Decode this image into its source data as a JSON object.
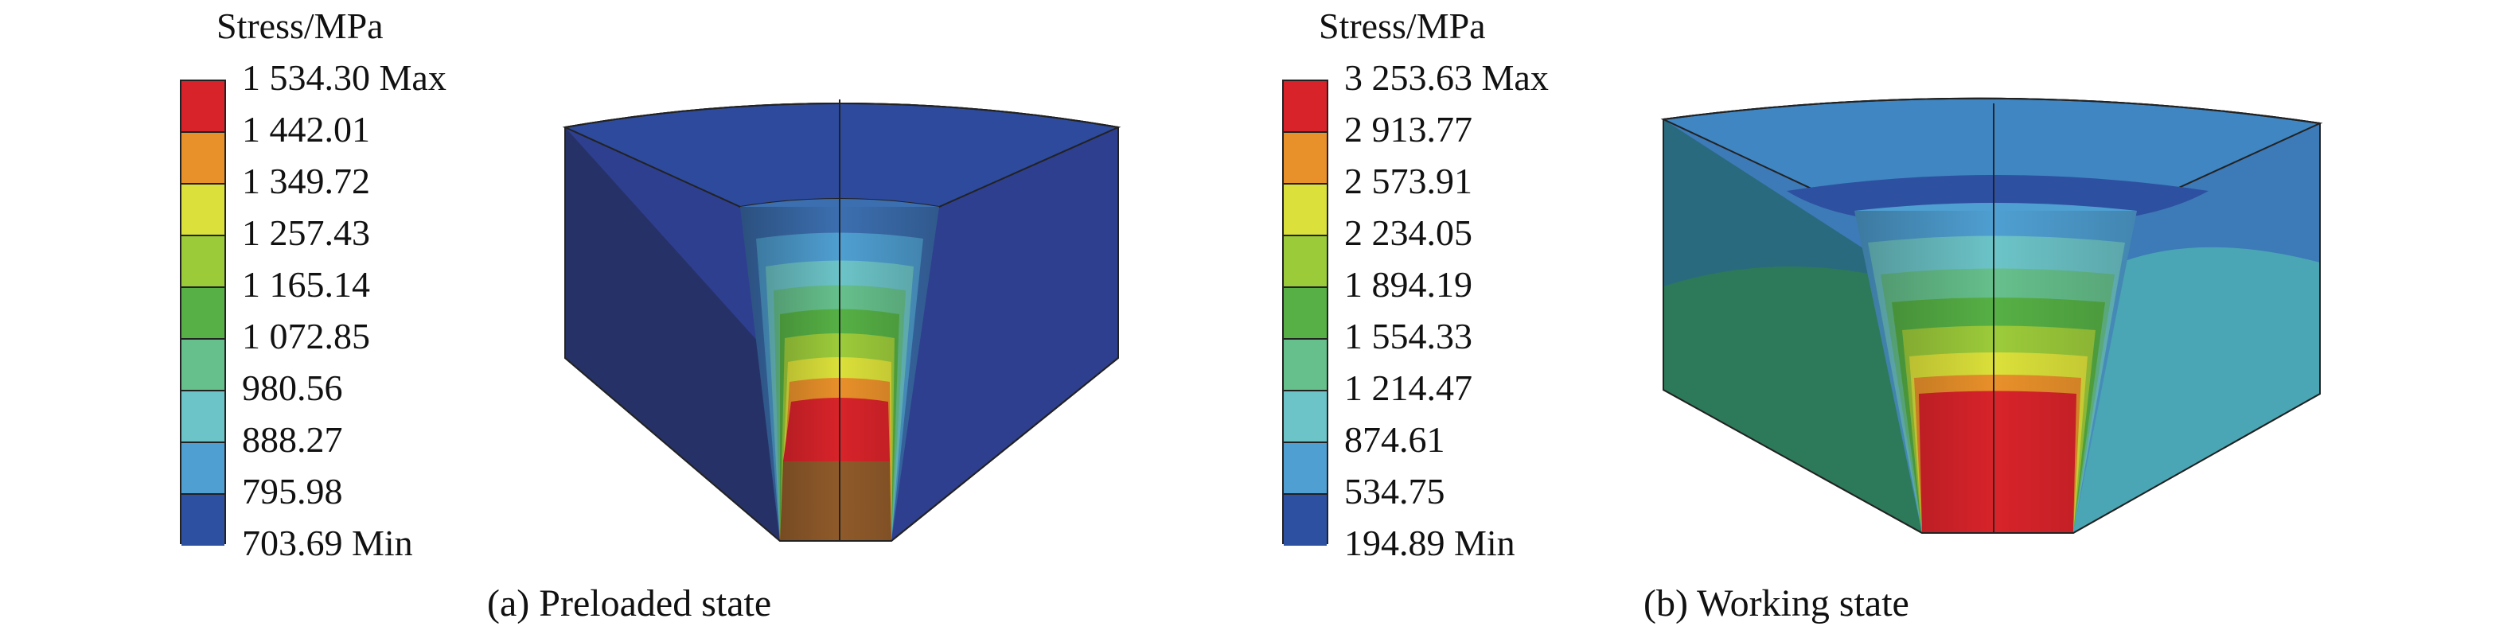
{
  "panels": [
    {
      "id": "a",
      "legend_title": "Stress/MPa",
      "legend_labels": [
        "1 534.30 Max",
        "1 442.01",
        "1 349.72",
        "1 257.43",
        "1 165.14",
        "1 072.85",
        "980.56",
        "888.27",
        "795.98",
        "703.69 Min"
      ],
      "caption": "(a) Preloaded state"
    },
    {
      "id": "b",
      "legend_title": "Stress/MPa",
      "legend_labels": [
        "3 253.63 Max",
        "2 913.77",
        "2 573.91",
        "2 234.05",
        "1 894.19",
        "1 554.33",
        "1 214.47",
        "874.61",
        "534.75",
        "194.89 Min"
      ],
      "caption": "(b) Working state"
    }
  ],
  "colors": {
    "scale": [
      "#d8232a",
      "#e8902a",
      "#dbe03a",
      "#9ccb3a",
      "#56b045",
      "#66c08c",
      "#6cc4c8",
      "#4f9fd2",
      "#2e50a0"
    ],
    "outline": "#222222"
  }
}
